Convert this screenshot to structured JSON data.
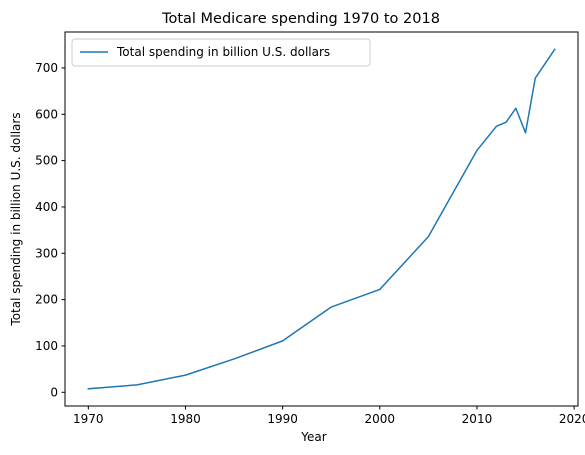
{
  "chart_data": {
    "type": "line",
    "title": "Total Medicare spending 1970 to 2018",
    "xlabel": "Year",
    "ylabel": "Total spending in billion U.S. dollars",
    "xlim": [
      1967.6,
      2020.4
    ],
    "ylim": [
      -29.6,
      777.6
    ],
    "xticks": [
      1970,
      1980,
      1990,
      2000,
      2010,
      2020
    ],
    "yticks": [
      0,
      100,
      200,
      300,
      400,
      500,
      600,
      700
    ],
    "grid": false,
    "legend_position": "upper left",
    "series": [
      {
        "name": "Total spending in billion U.S. dollars",
        "color": "#1f77b4",
        "x": [
          1970,
          1975,
          1980,
          1985,
          1990,
          1995,
          2000,
          2005,
          2010,
          2012,
          2013,
          2014,
          2015,
          2016,
          2018
        ],
        "values": [
          7.5,
          16,
          37,
          72,
          111,
          184,
          222,
          336,
          522,
          574,
          583,
          613,
          560,
          678,
          740
        ]
      }
    ]
  }
}
